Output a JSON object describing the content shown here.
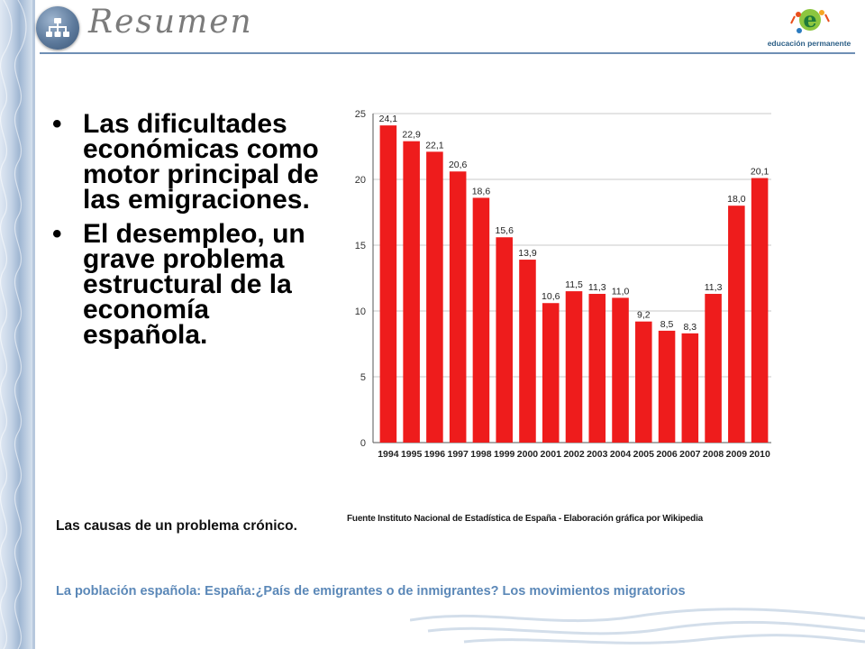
{
  "header": {
    "title": "Resumen",
    "logo_text": "educación permanente"
  },
  "bullets": [
    "Las dificultades económicas como motor principal de las emigraciones.",
    "El desempleo, un grave problema estructural de la economía española."
  ],
  "note": "Las causas de un problema crónico.",
  "source": "Fuente Instituto Nacional de Estadística de España - Elaboración gráfica por Wikipedia",
  "footer": "La población española: España:¿País de emigrantes o de inmigrantes? Los movimientos migratorios",
  "colors": {
    "bar": "#ee1c1c",
    "accent": "#5b88b8",
    "rule": "#6f8fb5"
  },
  "chart_data": {
    "type": "bar",
    "title": "",
    "xlabel": "",
    "ylabel": "",
    "categories": [
      "1994",
      "1995",
      "1996",
      "1997",
      "1998",
      "1999",
      "2000",
      "2001",
      "2002",
      "2003",
      "2004",
      "2005",
      "2006",
      "2007",
      "2008",
      "2009",
      "2010"
    ],
    "values": [
      24.1,
      22.9,
      22.1,
      20.6,
      18.6,
      15.6,
      13.9,
      10.6,
      11.5,
      11.3,
      11.0,
      9.2,
      8.5,
      8.3,
      11.3,
      18.0,
      20.1
    ],
    "value_labels": [
      "24,1",
      "22,9",
      "22,1",
      "20,6",
      "18,6",
      "15,6",
      "13,9",
      "10,6",
      "11,5",
      "11,3",
      "11,0",
      "9,2",
      "8,5",
      "8,3",
      "11,3",
      "18,0",
      "20,1"
    ],
    "yticks": [
      0,
      5,
      10,
      15,
      20,
      25
    ],
    "ylim": [
      0,
      25
    ],
    "grid": true,
    "legend": "none"
  }
}
